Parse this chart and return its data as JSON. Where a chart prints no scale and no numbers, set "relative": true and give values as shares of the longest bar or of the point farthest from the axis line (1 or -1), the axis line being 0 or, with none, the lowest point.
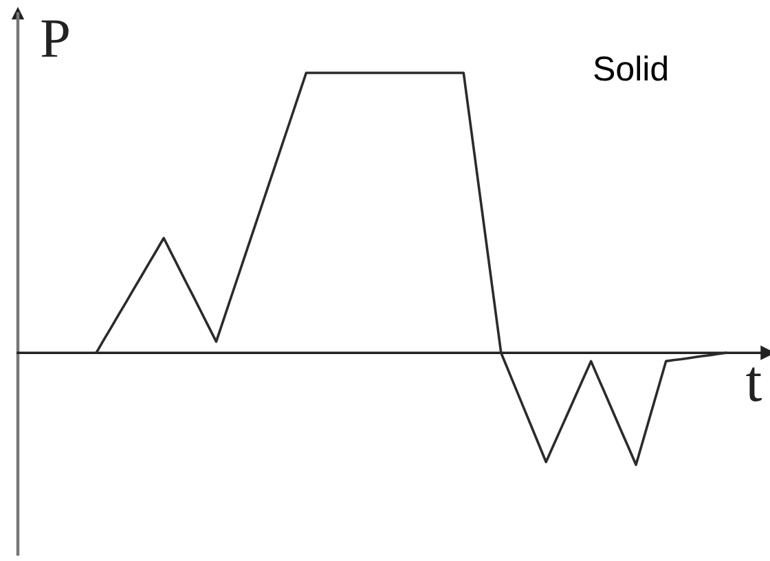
{
  "chart_data": {
    "type": "line",
    "xlabel": "t",
    "ylabel": "P",
    "annotations": [
      "Solid"
    ],
    "relative": true,
    "categories": [
      null,
      null,
      null,
      null,
      null,
      null,
      null,
      null,
      null,
      null,
      null,
      null,
      null,
      null,
      null,
      null,
      null,
      null,
      null,
      null,
      null,
      null,
      null,
      null,
      null,
      null,
      null,
      null,
      null,
      null,
      null,
      null,
      null,
      null,
      null,
      null,
      null,
      null,
      null,
      null,
      null,
      null,
      null,
      null,
      null,
      null,
      null,
      null,
      null,
      null,
      null,
      null,
      null,
      null,
      null,
      null,
      null,
      null,
      null,
      null,
      null,
      null,
      null,
      null,
      null,
      null,
      null,
      null,
      null,
      null,
      null,
      null,
      null,
      null,
      null,
      null,
      null,
      null,
      null,
      null,
      null,
      null,
      null,
      null,
      null
    ],
    "series": [
      {
        "color": "#2b2b2b",
        "values": [
          0,
          0.046,
          0.091,
          0.137,
          0.182,
          0.228,
          0.273,
          0.319,
          0.364,
          0.41,
          0.357,
          0.304,
          0.251,
          0.199,
          0.146,
          0.093,
          0.04,
          0.12,
          0.2,
          0.28,
          0.36,
          0.44,
          0.52,
          0.6,
          0.68,
          0.76,
          0.84,
          0.92,
          1,
          1,
          1,
          1,
          1,
          1,
          1,
          1,
          1,
          1,
          1,
          1,
          1,
          1,
          1,
          1,
          1,
          1,
          1,
          1,
          1,
          1,
          0.8,
          0.6,
          0.4,
          0.2,
          0,
          -0.065,
          -0.13,
          -0.195,
          -0.26,
          -0.325,
          -0.39,
          -0.33,
          -0.27,
          -0.21,
          -0.15,
          -0.09,
          -0.03,
          -0.092,
          -0.153,
          -0.215,
          -0.277,
          -0.338,
          -0.4,
          -0.308,
          -0.215,
          -0.123,
          -0.03,
          -0.026,
          -0.023,
          -0.019,
          -0.015,
          -0.011,
          -0.008,
          -0.004,
          0
        ]
      }
    ]
  }
}
